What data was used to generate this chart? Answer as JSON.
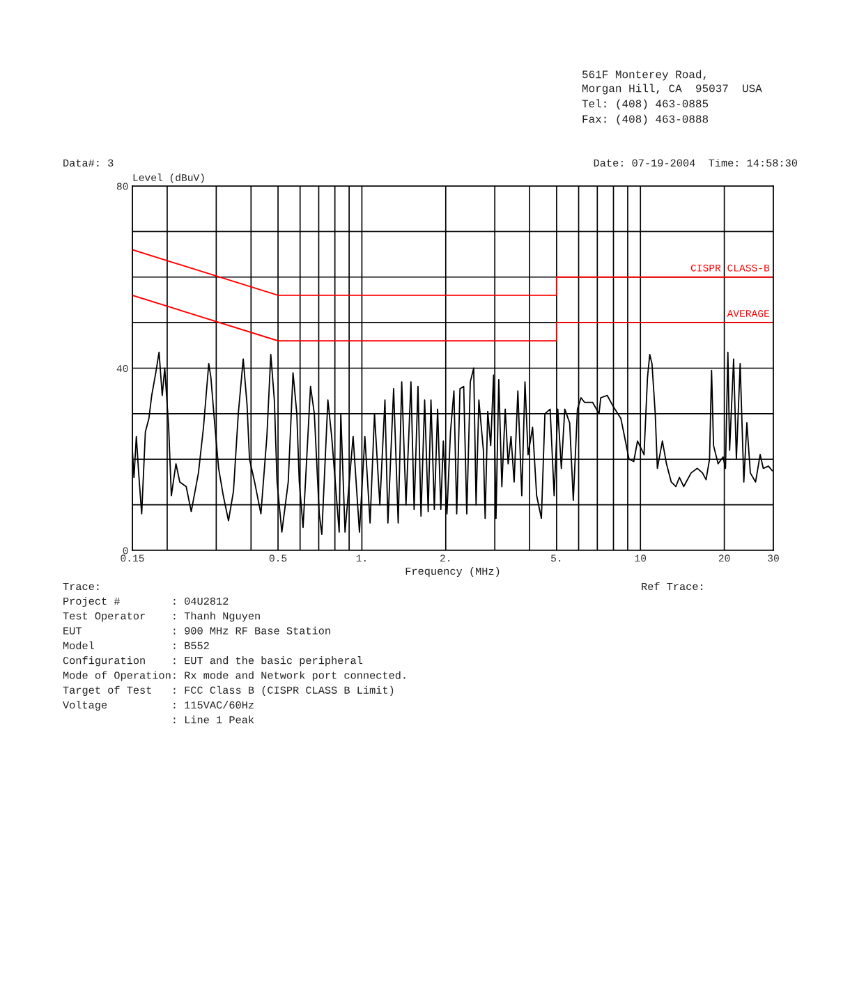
{
  "chart_data": {
    "type": "line",
    "xlabel": "Frequency (MHz)",
    "ylabel": "Level (dBuV)",
    "log": "x",
    "grid": true,
    "legend": false,
    "marker": "none",
    "line_style": "solid",
    "xlim": [
      0.15,
      30
    ],
    "ylim": [
      0,
      80
    ],
    "xticks": [
      {
        "value": 0.15,
        "label": "0.15"
      },
      {
        "value": 0.2,
        "label": null
      },
      {
        "value": 0.3,
        "label": null
      },
      {
        "value": 0.4,
        "label": null
      },
      {
        "value": 0.5,
        "label": "0.5"
      },
      {
        "value": 0.6,
        "label": null
      },
      {
        "value": 0.7,
        "label": null
      },
      {
        "value": 0.8,
        "label": null
      },
      {
        "value": 0.9,
        "label": null
      },
      {
        "value": 1,
        "label": "1."
      },
      {
        "value": 2,
        "label": "2."
      },
      {
        "value": 3,
        "label": null
      },
      {
        "value": 4,
        "label": null
      },
      {
        "value": 5,
        "label": "5."
      },
      {
        "value": 6,
        "label": null
      },
      {
        "value": 7,
        "label": null
      },
      {
        "value": 8,
        "label": null
      },
      {
        "value": 9,
        "label": null
      },
      10,
      20,
      30
    ],
    "yticks": [
      0,
      {
        "value": 10,
        "label": null
      },
      {
        "value": 20,
        "label": null
      },
      {
        "value": 30,
        "label": null
      },
      40,
      {
        "value": 50,
        "label": null
      },
      {
        "value": 60,
        "label": null
      },
      {
        "value": 70,
        "label": null
      },
      80
    ],
    "series": [
      {
        "color": "#000000",
        "x": [
          0.15,
          0.152,
          0.155,
          0.158,
          0.162,
          0.167,
          0.172,
          0.176,
          0.182,
          0.187,
          0.192,
          0.196,
          0.2025,
          0.207,
          0.215,
          0.222,
          0.234,
          0.244,
          0.259,
          0.27,
          0.282,
          0.287,
          0.296,
          0.306,
          0.318,
          0.332,
          0.346,
          0.36,
          0.375,
          0.387,
          0.395,
          0.412,
          0.434,
          0.456,
          0.471,
          0.485,
          0.496,
          0.516,
          0.544,
          0.566,
          0.584,
          0.596,
          0.615,
          0.654,
          0.675,
          0.703,
          0.718,
          0.755,
          0.779,
          0.829,
          0.84,
          0.87,
          0.93,
          0.98,
          1.025,
          1.07,
          1.11,
          1.16,
          1.21,
          1.24,
          1.3,
          1.35,
          1.39,
          1.44,
          1.5,
          1.54,
          1.59,
          1.63,
          1.68,
          1.73,
          1.77,
          1.82,
          1.87,
          1.92,
          1.96,
          2.02,
          2.08,
          2.14,
          2.19,
          2.25,
          2.32,
          2.38,
          2.45,
          2.52,
          2.57,
          2.63,
          2.73,
          2.77,
          2.83,
          2.9,
          2.97,
          3.03,
          3.1,
          3.18,
          3.27,
          3.35,
          3.43,
          3.52,
          3.63,
          3.75,
          3.85,
          3.95,
          4.1,
          4.24,
          4.41,
          4.54,
          4.74,
          4.9,
          5.05,
          5.2,
          5.35,
          5.57,
          5.74,
          5.94,
          6.12,
          6.3,
          6.73,
          7.1,
          7.2,
          7.6,
          8.0,
          8.5,
          8.7,
          9.1,
          9.46,
          9.76,
          10.3,
          10.6,
          10.8,
          11.0,
          11.3,
          11.5,
          11.99,
          12.4,
          12.9,
          13.4,
          13.8,
          14.3,
          15.2,
          16.0,
          16.7,
          17.2,
          17.7,
          18.0,
          18.3,
          19.0,
          19.8,
          20.2,
          20.6,
          20.9,
          21.6,
          22.1,
          22.8,
          23.5,
          24.1,
          24.8,
          25.9,
          26.9,
          27.6,
          28.8,
          29.7
        ],
        "values": [
          22,
          16,
          25,
          17,
          8,
          26,
          29,
          34,
          39,
          43.5,
          34,
          40,
          27,
          12,
          19,
          15,
          14,
          8.5,
          17,
          27,
          41,
          38,
          28,
          18,
          12,
          6.5,
          13,
          30,
          42,
          32,
          20,
          15,
          8,
          25,
          43,
          33,
          15,
          4,
          15,
          39,
          30,
          15,
          5,
          36,
          30,
          8,
          3.5,
          33,
          25,
          4,
          30,
          4,
          25,
          4,
          25,
          6,
          30,
          10,
          33,
          6,
          35.5,
          6,
          37,
          10,
          37,
          9,
          36,
          7.5,
          33,
          8.5,
          33,
          9,
          31,
          9,
          24,
          8,
          26,
          35,
          8,
          35.5,
          36,
          8,
          37,
          40,
          10,
          33,
          22,
          7,
          30.5,
          23,
          38.5,
          7,
          37.5,
          14,
          31,
          19,
          25,
          15,
          35,
          12,
          37,
          21,
          27,
          12,
          7,
          30,
          31,
          12,
          31,
          18,
          31,
          28,
          11,
          31,
          33.5,
          32.5,
          32.5,
          30,
          33.5,
          34,
          31.5,
          29,
          26,
          20,
          19.5,
          24,
          21,
          38,
          43,
          41,
          30,
          18,
          24,
          19,
          15,
          14,
          16,
          14,
          17,
          18,
          17,
          15.5,
          20,
          39.5,
          23,
          19,
          20.5,
          18,
          43.5,
          22,
          42,
          20,
          41,
          15,
          28,
          17,
          15,
          21,
          18,
          18.5,
          17.5
        ]
      },
      {
        "name": "CISPR CLASS-B",
        "color": "#ff0000",
        "x": [
          0.15,
          0.5,
          5,
          5,
          30
        ],
        "values": [
          66,
          56,
          56,
          60,
          60
        ]
      },
      {
        "name": "AVERAGE",
        "color": "#ff0000",
        "x": [
          0.15,
          0.5,
          5,
          5,
          30
        ],
        "values": [
          56,
          46,
          46,
          50,
          50
        ]
      }
    ],
    "annotations": [
      "561F Monterey Road,",
      "Morgan Hill, CA  95037  USA",
      "Tel: (408) 463-0885",
      "Fax: (408) 463-0888",
      "Data#: 3",
      "Date: 07-19-2004  Time: 14:58:30",
      "Trace:",
      "Ref Trace:",
      "Project #        : 04U2812",
      "Test Operator    : Thanh Nguyen",
      "EUT              : 900 MHz RF Base Station",
      "Model            : B552",
      "Configuration    : EUT and the basic peripheral",
      "Mode of Operation: Rx mode and Network port connected.",
      "Target of Test   : FCC Class B (CISPR CLASS B Limit)",
      "Voltage          : 115VAC/60Hz",
      "                 : Line 1 Peak"
    ]
  }
}
